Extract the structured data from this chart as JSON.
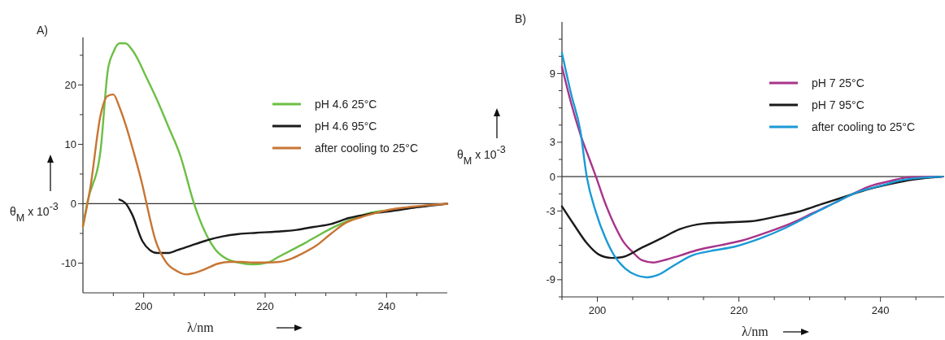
{
  "chart_data": [
    {
      "type": "line",
      "title": "A)",
      "xlabel": "λ/nm",
      "ylabel": "θ$_{M}$ x 10$^{-3}$",
      "xlim": [
        190,
        250
      ],
      "ylim": [
        -15,
        28
      ],
      "xticks": [
        {
          "value": 195,
          "label": null
        },
        200,
        {
          "value": 205,
          "label": null
        },
        {
          "value": 210,
          "label": null
        },
        {
          "value": 215,
          "label": null
        },
        220,
        {
          "value": 225,
          "label": null
        },
        {
          "value": 230,
          "label": null
        },
        {
          "value": 235,
          "label": null
        },
        240,
        {
          "value": 245,
          "label": null
        }
      ],
      "yticks": [
        -10,
        {
          "value": -5,
          "label": null
        },
        0,
        {
          "value": 5,
          "label": null
        },
        10,
        {
          "value": 15,
          "label": null
        },
        20,
        {
          "value": 25,
          "label": null
        }
      ],
      "ref_lines": [
        {
          "axis": "y",
          "value": 0,
          "color": "#333333"
        }
      ],
      "legend": "top right",
      "grid": false,
      "marker": "none",
      "line_style": "solid",
      "series": [
        {
          "name": "pH 4.6 25°C",
          "color": "#6cbf45",
          "x": [
            190,
            190.7,
            192.9,
            194.1,
            195,
            196,
            197,
            198.1,
            199.1,
            200.3,
            202.2,
            204.1,
            206,
            208.3,
            209.9,
            211.8,
            213.7,
            215.6,
            218,
            220.4,
            222.3,
            224.2,
            226.6,
            229,
            231.4,
            233.8,
            236.7,
            238.6,
            241
          ],
          "values": [
            -3.8,
            0.1,
            9,
            22.5,
            25.5,
            27,
            27,
            25.9,
            24.2,
            21.6,
            17.5,
            12.9,
            8.2,
            0,
            -4.3,
            -7.7,
            -9.3,
            -9.9,
            -10.2,
            -9.9,
            -8.9,
            -7.9,
            -6.6,
            -5.2,
            -3.9,
            -2.8,
            -1.7,
            -1.3,
            -1.1
          ]
        },
        {
          "name": "pH 4.6 95°C",
          "color": "#1a1a1a",
          "x": [
            196,
            197,
            198.1,
            199.8,
            201,
            202.2,
            203.9,
            205.6,
            207.9,
            210.3,
            213,
            215.6,
            218.5,
            221.8,
            225.2,
            228,
            230.9,
            233.8,
            236.2,
            238.6,
            241,
            244.3,
            250
          ],
          "values": [
            0.7,
            0.1,
            -1.8,
            -6.3,
            -7.8,
            -8.3,
            -8.3,
            -7.8,
            -7,
            -6.2,
            -5.5,
            -5.1,
            -4.9,
            -4.7,
            -4.4,
            -3.9,
            -3.4,
            -2.4,
            -1.9,
            -1.5,
            -1.2,
            -0.7,
            0
          ]
        },
        {
          "name": "after cooling to 25°C",
          "color": "#c87533",
          "x": [
            190,
            191.2,
            192.9,
            194,
            195,
            196,
            197,
            198.4,
            199.8,
            200.5,
            201.9,
            203.6,
            205.6,
            207,
            208.2,
            209.9,
            212.2,
            214.2,
            216.1,
            218,
            220.4,
            222.3,
            224.2,
            226.1,
            228.5,
            230.9,
            233.3,
            235.7,
            238.1,
            240.5,
            243.3,
            246.2,
            250
          ],
          "values": [
            -3.8,
            2.6,
            14.9,
            18.1,
            18.4,
            16.3,
            13.4,
            8.5,
            3.1,
            -0.1,
            -6,
            -9.7,
            -11.4,
            -11.9,
            -11.7,
            -11.1,
            -10.1,
            -9.8,
            -9.8,
            -9.9,
            -9.9,
            -9.8,
            -9.3,
            -8.4,
            -7,
            -5,
            -3.2,
            -2.3,
            -1.6,
            -1,
            -0.6,
            -0.3,
            0
          ]
        }
      ]
    },
    {
      "type": "line",
      "title": "B)",
      "xlabel": "λ/nm",
      "ylabel": "θ$_{M}$ x 10$^{-3}$",
      "xlim": [
        195,
        249
      ],
      "ylim": [
        -10.5,
        13.5
      ],
      "xticks": [
        {
          "value": 195,
          "label": null
        },
        200,
        {
          "value": 205,
          "label": null
        },
        {
          "value": 210,
          "label": null
        },
        {
          "value": 215,
          "label": null
        },
        220,
        {
          "value": 225,
          "label": null
        },
        {
          "value": 230,
          "label": null
        },
        {
          "value": 235,
          "label": null
        },
        240,
        {
          "value": 245,
          "label": null
        }
      ],
      "yticks": [
        {
          "value": -10.5,
          "label": null
        },
        -9,
        {
          "value": -7.5,
          "label": null
        },
        {
          "value": -6,
          "label": null
        },
        {
          "value": -4.5,
          "label": null
        },
        -3,
        {
          "value": -1.5,
          "label": null
        },
        0,
        {
          "value": 1.5,
          "label": null
        },
        3,
        {
          "value": 4.5,
          "label": null
        },
        {
          "value": 6,
          "label": null
        },
        {
          "value": 7.5,
          "label": null
        },
        9,
        {
          "value": 10.5,
          "label": null
        },
        {
          "value": 12,
          "label": null
        }
      ],
      "ref_lines": [
        {
          "axis": "y",
          "value": 0,
          "color": "#333333"
        }
      ],
      "legend": "top right",
      "grid": false,
      "marker": "none",
      "line_style": "solid",
      "series": [
        {
          "name": "pH 7 25°C",
          "color": "#a8338a",
          "x": [
            195,
            196.3,
            197.6,
            198.9,
            199.8,
            201.1,
            202.4,
            203.7,
            205,
            206.3,
            207.9,
            209.4,
            211.6,
            214.2,
            217.3,
            220.3,
            223.8,
            227.3,
            230.4,
            233.5,
            236.1,
            238.7,
            241.3,
            244,
            248.7
          ],
          "values": [
            9.6,
            6.4,
            3.7,
            1.5,
            0,
            -2.3,
            -4.2,
            -5.7,
            -6.6,
            -7.3,
            -7.5,
            -7.3,
            -6.9,
            -6.4,
            -6,
            -5.6,
            -4.9,
            -4.1,
            -3.2,
            -2.3,
            -1.5,
            -0.8,
            -0.4,
            -0.05,
            0
          ]
        },
        {
          "name": "pH 7 95°C",
          "color": "#1a1a1a",
          "x": [
            195,
            196.7,
            198.5,
            200.2,
            202,
            203.7,
            206.3,
            209,
            211.6,
            215.1,
            218.2,
            221.7,
            225.2,
            228.2,
            231.7,
            235.2,
            238.3,
            241.3,
            244.8,
            248.7
          ],
          "values": [
            -2.6,
            -4.2,
            -5.8,
            -6.8,
            -7.1,
            -7,
            -6.2,
            -5.4,
            -4.6,
            -4.1,
            -4,
            -3.9,
            -3.5,
            -3.1,
            -2.4,
            -1.7,
            -1.1,
            -0.65,
            -0.25,
            0
          ]
        },
        {
          "name": "after cooling to 25°C",
          "color": "#1a9ad6",
          "x": [
            195,
            196.3,
            197.6,
            198.5,
            199.8,
            201.1,
            202.4,
            203.9,
            205.5,
            207,
            208.5,
            210.7,
            213.3,
            216,
            219.5,
            223,
            226.5,
            230,
            233.5,
            237,
            240,
            243.5,
            248.7
          ],
          "values": [
            10.8,
            7.2,
            4,
            0,
            -3.1,
            -5.3,
            -6.9,
            -8,
            -8.6,
            -8.8,
            -8.6,
            -7.8,
            -6.9,
            -6.5,
            -6.1,
            -5.4,
            -4.5,
            -3.4,
            -2.3,
            -1.3,
            -0.8,
            -0.25,
            0
          ]
        }
      ]
    }
  ]
}
